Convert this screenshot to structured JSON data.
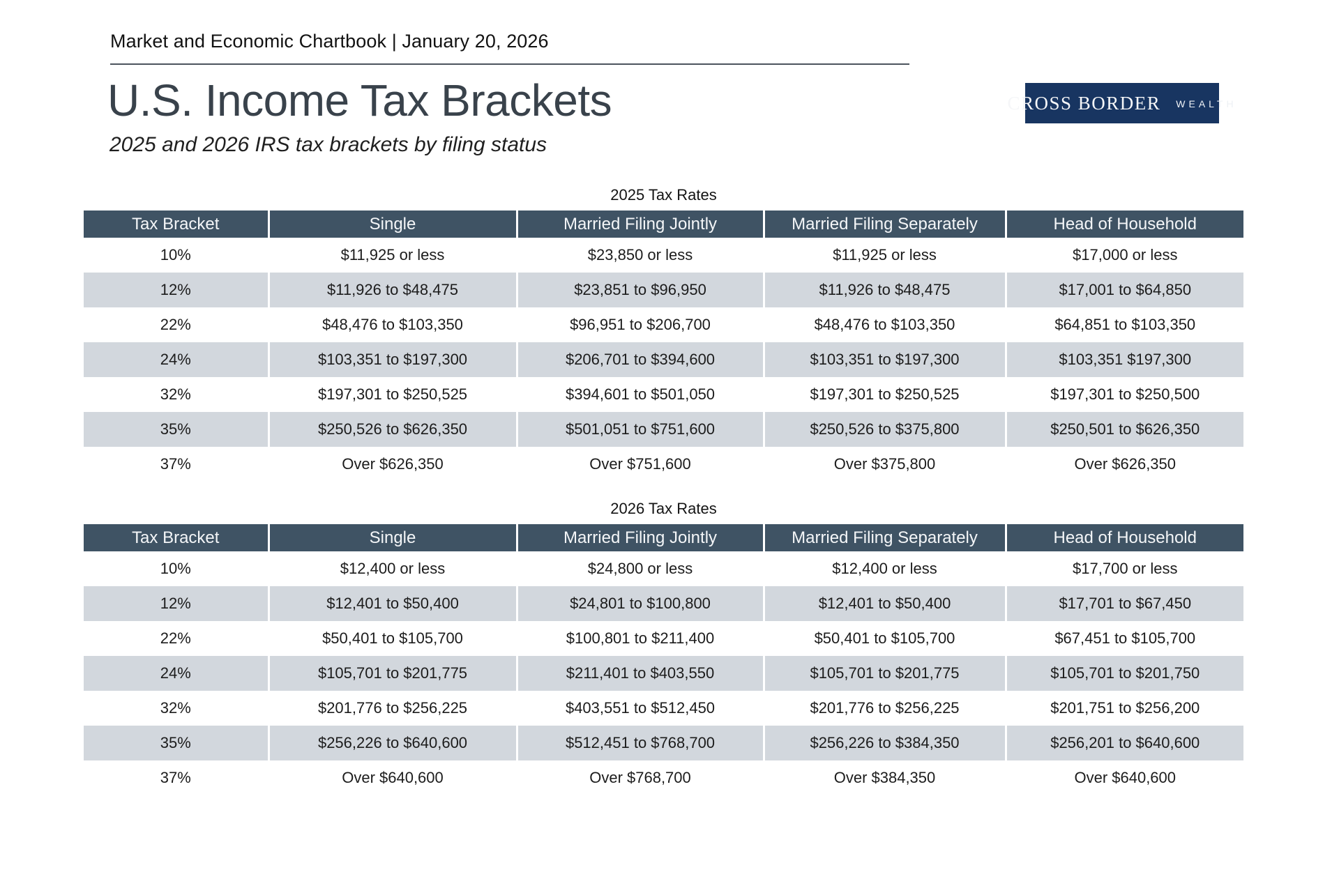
{
  "page": {
    "eyebrow": "Market and Economic Chartbook | January 20, 2026",
    "title": "U.S. Income Tax Brackets",
    "subtitle": "2025 and 2026 IRS tax brackets by filing status"
  },
  "logo": {
    "primary": "CROSS BORDER",
    "secondary": "WEALTH",
    "background": "#183561",
    "divider_color": "#5d7ba8"
  },
  "colors": {
    "table_header_bg": "#3f5364",
    "table_stripe_bg": "#d2d7dd",
    "title_text": "#39424b",
    "rule": "#4b545d"
  },
  "tables": [
    {
      "caption": "2025 Tax Rates",
      "columns": [
        "Tax Bracket",
        "Single",
        "Married Filing Jointly",
        "Married Filing Separately",
        "Head of Household"
      ],
      "rows": [
        [
          "10%",
          "$11,925 or less",
          "$23,850 or less",
          "$11,925 or less",
          "$17,000 or less"
        ],
        [
          "12%",
          "$11,926 to $48,475",
          "$23,851 to $96,950",
          "$11,926 to $48,475",
          "$17,001 to $64,850"
        ],
        [
          "22%",
          "$48,476 to $103,350",
          "$96,951 to $206,700",
          "$48,476 to $103,350",
          "$64,851 to $103,350"
        ],
        [
          "24%",
          "$103,351 to $197,300",
          "$206,701 to $394,600",
          "$103,351 to $197,300",
          "$103,351 $197,300"
        ],
        [
          "32%",
          "$197,301 to $250,525",
          "$394,601 to $501,050",
          "$197,301 to $250,525",
          "$197,301 to $250,500"
        ],
        [
          "35%",
          "$250,526 to $626,350",
          "$501,051 to $751,600",
          "$250,526 to $375,800",
          "$250,501 to $626,350"
        ],
        [
          "37%",
          "Over $626,350",
          "Over $751,600",
          "Over $375,800",
          "Over $626,350"
        ]
      ]
    },
    {
      "caption": "2026 Tax Rates",
      "columns": [
        "Tax Bracket",
        "Single",
        "Married Filing Jointly",
        "Married Filing Separately",
        "Head of Household"
      ],
      "rows": [
        [
          "10%",
          "$12,400 or less",
          "$24,800 or less",
          "$12,400 or less",
          "$17,700 or less"
        ],
        [
          "12%",
          "$12,401 to $50,400",
          "$24,801 to $100,800",
          "$12,401 to $50,400",
          "$17,701 to $67,450"
        ],
        [
          "22%",
          "$50,401 to $105,700",
          "$100,801 to $211,400",
          "$50,401 to $105,700",
          "$67,451 to $105,700"
        ],
        [
          "24%",
          "$105,701 to $201,775",
          "$211,401 to $403,550",
          "$105,701 to $201,775",
          "$105,701 to $201,750"
        ],
        [
          "32%",
          "$201,776 to $256,225",
          "$403,551 to $512,450",
          "$201,776 to $256,225",
          "$201,751 to $256,200"
        ],
        [
          "35%",
          "$256,226 to $640,600",
          "$512,451 to $768,700",
          "$256,226 to $384,350",
          "$256,201 to $640,600"
        ],
        [
          "37%",
          "Over $640,600",
          "Over $768,700",
          "Over $384,350",
          "Over $640,600"
        ]
      ]
    }
  ]
}
